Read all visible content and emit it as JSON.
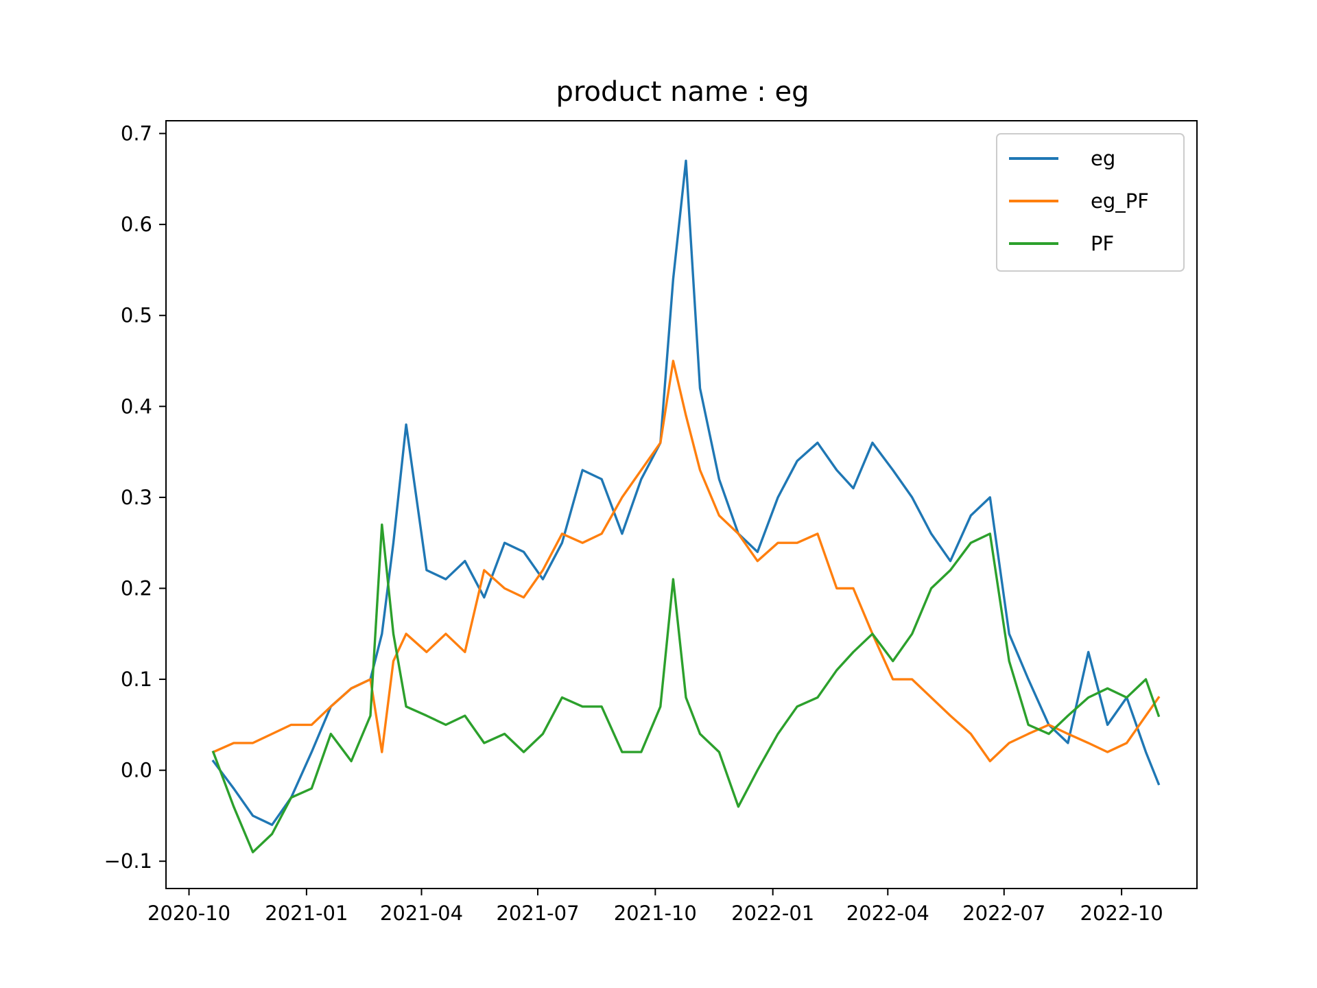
{
  "chart_data": {
    "type": "line",
    "title": "product name :    eg",
    "xlabel": "",
    "ylabel": "",
    "x_ticks": [
      "2020-10",
      "2021-01",
      "2021-04",
      "2021-07",
      "2021-10",
      "2022-01",
      "2022-04",
      "2022-07",
      "2022-10"
    ],
    "y_ticks": [
      "−0.1",
      "0.0",
      "0.1",
      "0.2",
      "0.3",
      "0.4",
      "0.5",
      "0.6",
      "0.7"
    ],
    "xlim": [
      "2020-09-13",
      "2022-11-29"
    ],
    "ylim": [
      -0.13,
      0.714
    ],
    "grid": false,
    "legend_position": "top-right",
    "x": [
      "2020-10-20",
      "2020-11-05",
      "2020-11-20",
      "2020-12-05",
      "2020-12-20",
      "2021-01-05",
      "2021-01-20",
      "2021-02-05",
      "2021-02-20",
      "2021-03-01",
      "2021-03-10",
      "2021-03-20",
      "2021-04-05",
      "2021-04-20",
      "2021-05-05",
      "2021-05-20",
      "2021-06-05",
      "2021-06-20",
      "2021-07-05",
      "2021-07-20",
      "2021-08-05",
      "2021-08-20",
      "2021-09-05",
      "2021-09-20",
      "2021-10-05",
      "2021-10-15",
      "2021-10-25",
      "2021-11-05",
      "2021-11-20",
      "2021-12-05",
      "2021-12-20",
      "2022-01-05",
      "2022-01-20",
      "2022-02-05",
      "2022-02-20",
      "2022-03-05",
      "2022-03-20",
      "2022-04-05",
      "2022-04-20",
      "2022-05-05",
      "2022-05-20",
      "2022-06-05",
      "2022-06-20",
      "2022-07-05",
      "2022-07-20",
      "2022-08-05",
      "2022-08-20",
      "2022-09-05",
      "2022-09-20",
      "2022-10-05",
      "2022-10-20",
      "2022-10-30"
    ],
    "series": [
      {
        "name": "eg",
        "color": "#1f77b4",
        "values": [
          0.01,
          -0.02,
          -0.05,
          -0.06,
          -0.03,
          0.02,
          0.07,
          0.09,
          0.1,
          0.15,
          0.25,
          0.38,
          0.22,
          0.21,
          0.23,
          0.19,
          0.25,
          0.24,
          0.21,
          0.25,
          0.33,
          0.32,
          0.26,
          0.32,
          0.36,
          0.54,
          0.67,
          0.42,
          0.32,
          0.26,
          0.24,
          0.3,
          0.34,
          0.36,
          0.33,
          0.31,
          0.36,
          0.33,
          0.3,
          0.26,
          0.23,
          0.28,
          0.3,
          0.15,
          0.1,
          0.05,
          0.03,
          0.13,
          0.05,
          0.08,
          0.02,
          -0.015
        ]
      },
      {
        "name": "eg_PF",
        "color": "#ff7f0e",
        "values": [
          0.02,
          0.03,
          0.03,
          0.04,
          0.05,
          0.05,
          0.07,
          0.09,
          0.1,
          0.02,
          0.12,
          0.15,
          0.13,
          0.15,
          0.13,
          0.22,
          0.2,
          0.19,
          0.22,
          0.26,
          0.25,
          0.26,
          0.3,
          0.33,
          0.36,
          0.45,
          0.39,
          0.33,
          0.28,
          0.26,
          0.23,
          0.25,
          0.25,
          0.26,
          0.2,
          0.2,
          0.15,
          0.1,
          0.1,
          0.08,
          0.06,
          0.04,
          0.01,
          0.03,
          0.04,
          0.05,
          0.04,
          0.03,
          0.02,
          0.03,
          0.06,
          0.08
        ]
      },
      {
        "name": "PF",
        "color": "#2ca02c",
        "values": [
          0.02,
          -0.04,
          -0.09,
          -0.07,
          -0.03,
          -0.02,
          0.04,
          0.01,
          0.06,
          0.27,
          0.15,
          0.07,
          0.06,
          0.05,
          0.06,
          0.03,
          0.04,
          0.02,
          0.04,
          0.08,
          0.07,
          0.07,
          0.02,
          0.02,
          0.07,
          0.21,
          0.08,
          0.04,
          0.02,
          -0.04,
          0.0,
          0.04,
          0.07,
          0.08,
          0.11,
          0.13,
          0.15,
          0.12,
          0.15,
          0.2,
          0.22,
          0.25,
          0.26,
          0.12,
          0.05,
          0.04,
          0.06,
          0.08,
          0.09,
          0.08,
          0.1,
          0.06
        ]
      }
    ]
  }
}
